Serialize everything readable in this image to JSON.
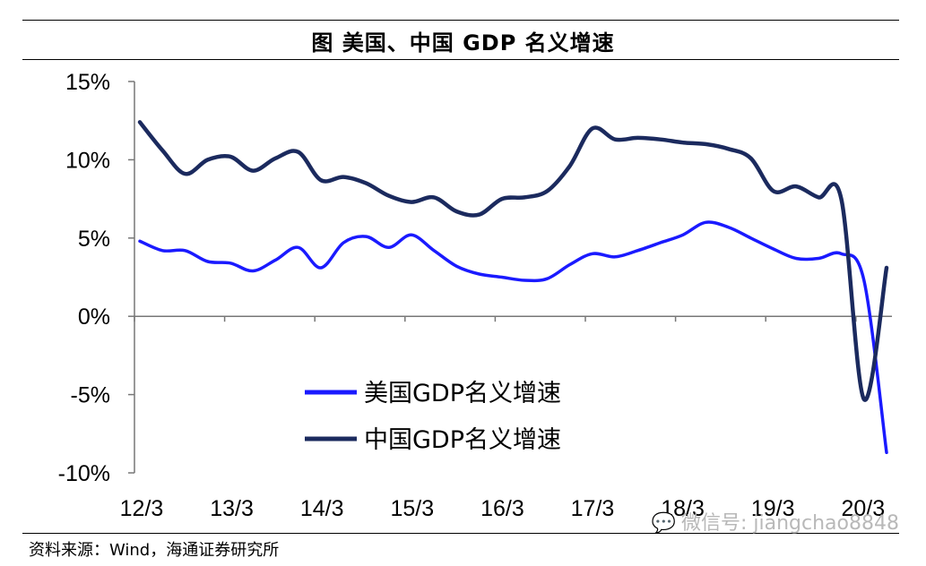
{
  "header": {
    "title": "图 美国、中国 GDP 名义增速"
  },
  "footer": {
    "source": "资料来源：Wind，海通证券研究所",
    "watermark": "微信号: jiangchao8848",
    "watermark_icon": "wechat-icon"
  },
  "colors": {
    "us_series": "#1a1aff",
    "china_series": "#1b2a5e"
  },
  "chart_data": {
    "type": "line",
    "title": "美国、中国 GDP 名义增速",
    "xlabel": "",
    "ylabel": "",
    "ylim": [
      -10,
      15
    ],
    "y_ticks": [
      "15%",
      "10%",
      "5%",
      "0%",
      "-5%",
      "-10%"
    ],
    "y_tick_values": [
      15,
      10,
      5,
      0,
      -5,
      -10
    ],
    "x_tick_labels": [
      "12/3",
      "13/3",
      "14/3",
      "15/3",
      "16/3",
      "17/3",
      "18/3",
      "19/3",
      "20/3"
    ],
    "x": [
      0,
      1,
      2,
      3,
      4,
      5,
      6,
      7,
      8,
      9,
      10,
      11,
      12,
      13,
      14,
      15,
      16,
      17,
      18,
      19,
      20,
      21,
      22,
      23,
      24,
      25,
      26,
      27,
      28,
      29,
      30,
      31,
      32,
      33
    ],
    "grid": false,
    "legend_position": "bottom-center",
    "series": [
      {
        "name": "美国GDP名义增速",
        "values": [
          4.8,
          4.2,
          4.2,
          3.5,
          3.4,
          2.9,
          3.6,
          4.4,
          3.1,
          4.7,
          5.1,
          4.4,
          5.2,
          4.2,
          3.2,
          2.7,
          2.5,
          2.3,
          2.4,
          3.3,
          4.0,
          3.8,
          4.2,
          4.7,
          5.2,
          6.0,
          5.7,
          5.0,
          4.3,
          3.7,
          3.7,
          4.0,
          2.3,
          -8.7
        ]
      },
      {
        "name": "中国GDP名义增速",
        "values": [
          12.4,
          10.6,
          9.1,
          10.0,
          10.2,
          9.3,
          10.1,
          10.5,
          8.7,
          8.9,
          8.5,
          7.7,
          7.3,
          7.6,
          6.7,
          6.5,
          7.5,
          7.6,
          8.0,
          9.6,
          12.0,
          11.3,
          11.4,
          11.3,
          11.1,
          11.0,
          10.7,
          10.1,
          8.0,
          8.3,
          7.6,
          7.5,
          -5.3,
          3.1
        ]
      }
    ]
  }
}
